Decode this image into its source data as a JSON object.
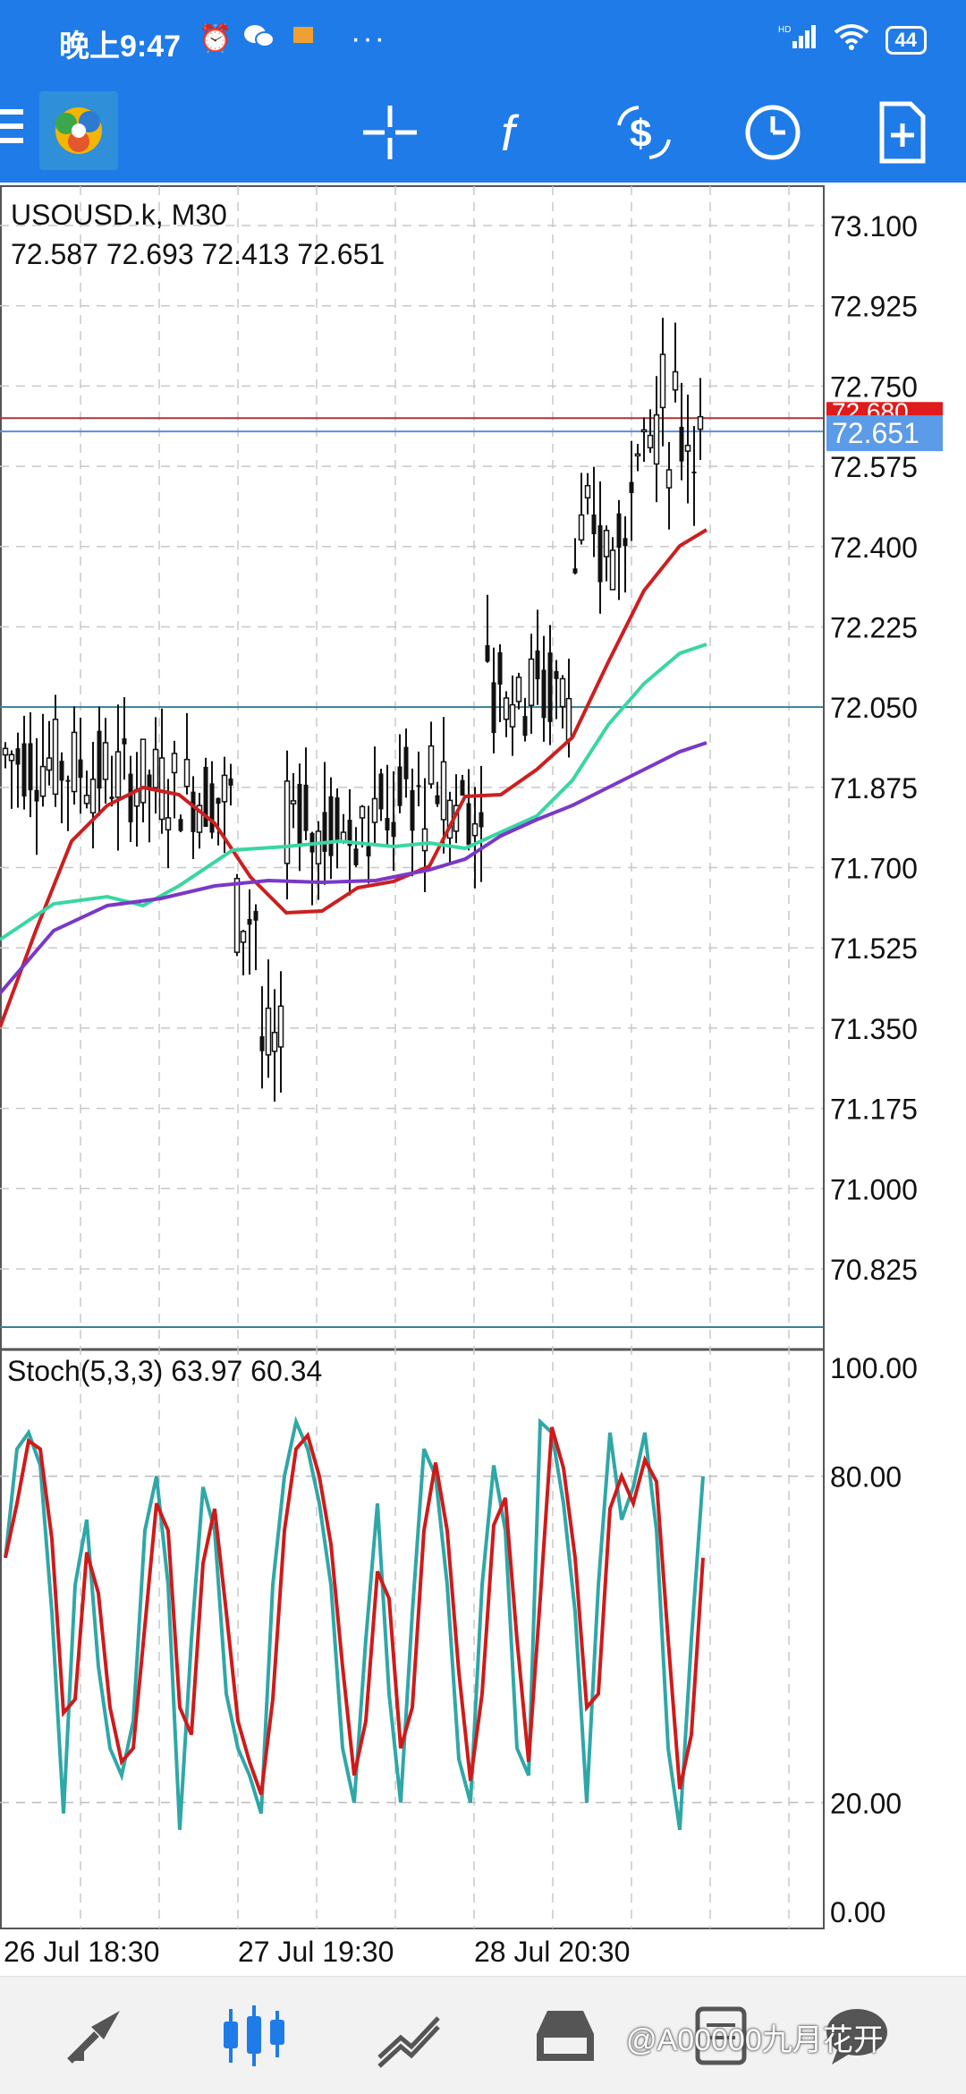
{
  "status_bar": {
    "time": "晚上9:47",
    "battery": "44",
    "dots": "···",
    "network": "HD"
  },
  "toolbar": {
    "icons": [
      "menu-icon",
      "metatrader-logo",
      "crosshair-icon",
      "function-icon",
      "currency-exchange-icon",
      "clock-icon",
      "new-order-icon"
    ]
  },
  "chart": {
    "symbol": "USOUSD.k, M30",
    "ohlc": "72.587 72.693 72.413 72.651",
    "current_price": "72.651",
    "ask_price": "72.680",
    "price_ticks": [
      "73.100",
      "72.925",
      "72.750",
      "72.575",
      "72.400",
      "72.225",
      "72.050",
      "71.875",
      "71.700",
      "71.525",
      "71.350",
      "71.175",
      "71.000",
      "70.825"
    ],
    "time_ticks": [
      "26 Jul 18:30",
      "27 Jul 19:30",
      "28 Jul 20:30"
    ],
    "colors": {
      "ma_fast": "#cc1f1f",
      "ma_mid": "#3ad6a2",
      "ma_slow": "#7a38c8",
      "stoch_main": "#2fa7a7",
      "stoch_signal": "#d01a1a",
      "bid_line": "#5c8ed8",
      "ask_line": "#b33333"
    }
  },
  "stochastic": {
    "label": "Stoch(5,3,3) 63.97 60.34",
    "ticks": [
      "100.00",
      "80.00",
      "20.00",
      "0.00"
    ]
  },
  "bottom_nav": {
    "items": [
      "quotes-icon",
      "chart-icon",
      "trade-icon",
      "history-icon",
      "messages-icon",
      "chat-icon"
    ],
    "watermark": "@A00000九月花开"
  }
}
